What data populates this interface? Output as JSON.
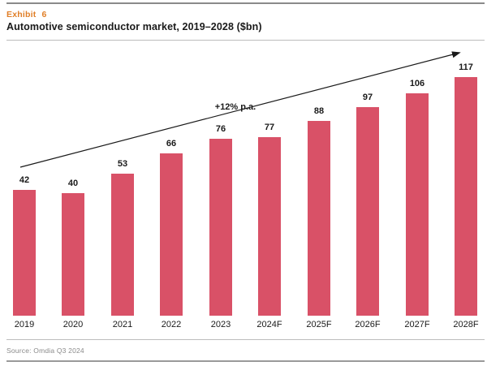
{
  "header": {
    "exhibit_label": "Exhibit 6",
    "title": "Automotive semiconductor market, 2019–2028 ($bn)"
  },
  "annotation": {
    "growth_label": "+12% p.a."
  },
  "footer": {
    "source": "Source: Omdia Q3 2024"
  },
  "colors": {
    "bar": "#d95167",
    "exhibit_accent": "#e07f28",
    "arrow": "#1a1a1a",
    "rule_dark": "#8a8a8a",
    "rule_light": "#bdbdbd",
    "source_text": "#8a8a8a"
  },
  "chart_data": {
    "type": "bar",
    "title": "Automotive semiconductor market, 2019–2028 ($bn)",
    "categories": [
      "2019",
      "2020",
      "2021",
      "2022",
      "2023",
      "2024F",
      "2025F",
      "2026F",
      "2027F",
      "2028F"
    ],
    "values": [
      42,
      40,
      53,
      66,
      76,
      77,
      88,
      97,
      106,
      117
    ],
    "unit": "$bn",
    "xlabel": "",
    "ylabel": "",
    "grid": false,
    "legend": false,
    "data_labels": true,
    "annotation": "+12% p.a.",
    "trend_arrow": true
  }
}
